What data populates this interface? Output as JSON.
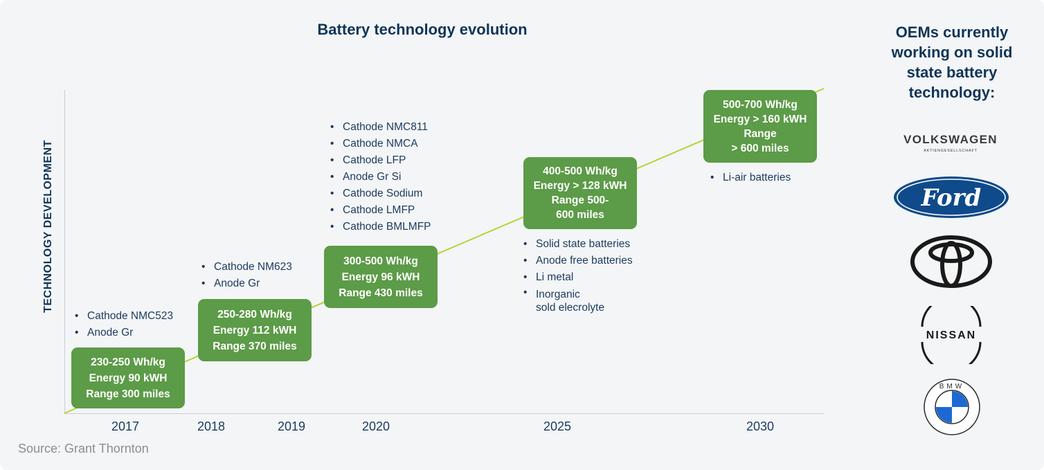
{
  "title": "Battery technology evolution",
  "y_axis_label": "TECHNOLOGY DEVELOPMENT",
  "years": [
    "2017",
    "2018",
    "2019",
    "2020",
    "2025",
    "2030"
  ],
  "stages": [
    {
      "box": [
        "230-250 Wh/kg",
        "Energy 90 kWH",
        "Range 300 miles"
      ],
      "bullets": [
        "Cathode NMC523",
        "Anode Gr"
      ]
    },
    {
      "box": [
        "250-280 Wh/kg",
        "Energy 112 kWH",
        "Range 370 miles"
      ],
      "bullets": [
        "Cathode NM623",
        "Anode Gr"
      ]
    },
    {
      "box": [
        "300-500 Wh/kg",
        "Energy 96 kWH",
        "Range 430 miles"
      ],
      "bullets": [
        "Cathode NMC811",
        "Cathode NMCA",
        "Cathode LFP",
        "Anode Gr Si",
        "Cathode Sodium",
        "Cathode LMFP",
        "Cathode BMLMFP"
      ]
    },
    {
      "box": [
        "400-500 Wh/kg",
        "Energy > 128 kWH",
        "Range 500-",
        "600 miles"
      ],
      "bullets": [
        "Solid state batteries",
        "Anode free batteries",
        "Li metal",
        "Inorganic",
        "sold elecrolyte"
      ]
    },
    {
      "box": [
        "500-700 Wh/kg",
        "Energy > 160 kWH",
        "Range",
        "> 600 miles"
      ],
      "bullets": [
        "Li-air batteries"
      ]
    }
  ],
  "source": "Source: Grant Thornton",
  "oem_panel": {
    "title_lines": [
      "OEMs currently",
      "working on solid",
      "state battery",
      "technology:"
    ],
    "logos": [
      {
        "name": "VOLKSWAGEN",
        "sub": "AKTIENGESELLSCHAFT",
        "icon": "volkswagen-logo"
      },
      {
        "name": "Ford",
        "icon": "ford-logo"
      },
      {
        "name": "Toyota",
        "icon": "toyota-logo"
      },
      {
        "name": "NISSAN",
        "icon": "nissan-logo"
      },
      {
        "name": "BMW",
        "icon": "bmw-logo"
      }
    ]
  },
  "colors": {
    "box_green": "#5c9b47",
    "trend_line": "#b5d334",
    "navy": "#0f3558",
    "ford_blue": "#0f4a8a",
    "bmw_blue": "#1c69d4"
  }
}
